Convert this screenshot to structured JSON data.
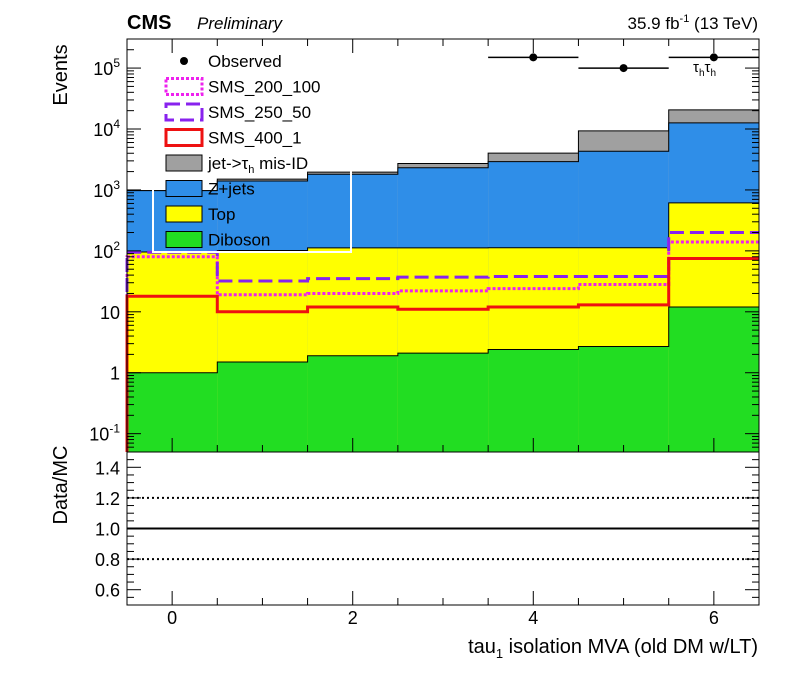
{
  "header": {
    "experiment": "CMS",
    "status": "Preliminary",
    "lumi_value": "35.9 fb",
    "lumi_exp": "-1",
    "energy": "(13 TeV)",
    "channel_base": "τ",
    "channel_sub": "h"
  },
  "chart_data": [
    {
      "type": "bar",
      "stacked": true,
      "log_y": true,
      "ylabel": "Events",
      "ylim": [
        0.05,
        300000
      ],
      "xlim": [
        -0.5,
        6.5
      ],
      "bins": [
        -0.5,
        0.5,
        1.5,
        2.5,
        3.5,
        4.5,
        5.5,
        6.5
      ],
      "y_ticks": [
        {
          "value": 0.1,
          "base": "10",
          "exp": "-1"
        },
        {
          "value": 1,
          "base": "1",
          "exp": ""
        },
        {
          "value": 10,
          "base": "10",
          "exp": ""
        },
        {
          "value": 100,
          "base": "10",
          "exp": "2"
        },
        {
          "value": 1000,
          "base": "10",
          "exp": "3"
        },
        {
          "value": 10000,
          "base": "10",
          "exp": "4"
        },
        {
          "value": 100000,
          "base": "10",
          "exp": "5"
        }
      ],
      "stack": [
        {
          "name": "Diboson",
          "color": "#22dd22",
          "values": [
            1.0,
            1.5,
            1.9,
            2.1,
            2.4,
            2.7,
            12.0
          ]
        },
        {
          "name": "Top",
          "color": "#ffff00",
          "values": [
            95,
            100,
            110,
            110,
            110,
            110,
            600
          ]
        },
        {
          "name": "Z+jets",
          "color": "#2f8ee8",
          "values": [
            880,
            1300,
            1700,
            2200,
            2800,
            4200,
            12000
          ]
        },
        {
          "name_base": "jet->τ",
          "name_sub": "h",
          "name_rest": " mis-ID",
          "color": "#a0a0a0",
          "values": [
            0,
            100,
            150,
            400,
            1100,
            5000,
            8000
          ]
        }
      ],
      "signals": [
        {
          "name": "SMS_200_100",
          "color": "#ee22ee",
          "dash": "3,2",
          "values": [
            80,
            19,
            20,
            22,
            24,
            28,
            140
          ]
        },
        {
          "name": "SMS_250_50",
          "color": "#8822ee",
          "dash": "14,6",
          "values": [
            95,
            32,
            35,
            37,
            38,
            38,
            200
          ]
        },
        {
          "name": "SMS_400_1",
          "color": "#ee1111",
          "dash": "",
          "values": [
            18,
            10,
            12,
            11,
            12,
            13,
            75
          ]
        }
      ],
      "observed": {
        "name": "Observed",
        "points": [
          {
            "x": 4,
            "y": 150000
          },
          {
            "x": 5,
            "y": 100000
          },
          {
            "x": 6,
            "y": 150000
          }
        ]
      }
    },
    {
      "type": "line",
      "ylabel": "Data/MC",
      "xlabel_base": "tau",
      "xlabel_sub": "1",
      "xlabel_rest": " isolation MVA (old DM w/LT)",
      "ylim": [
        0.5,
        1.5
      ],
      "xlim": [
        -0.5,
        6.5
      ],
      "x_ticks": [
        0,
        2,
        4,
        6
      ],
      "y_ticks": [
        "0.6",
        "0.8",
        "1.0",
        "1.2",
        "1.4"
      ],
      "reference_lines": [
        {
          "y": 1.0,
          "style": "solid"
        },
        {
          "y": 1.2,
          "style": "dotted"
        },
        {
          "y": 0.8,
          "style": "dotted"
        }
      ]
    }
  ]
}
